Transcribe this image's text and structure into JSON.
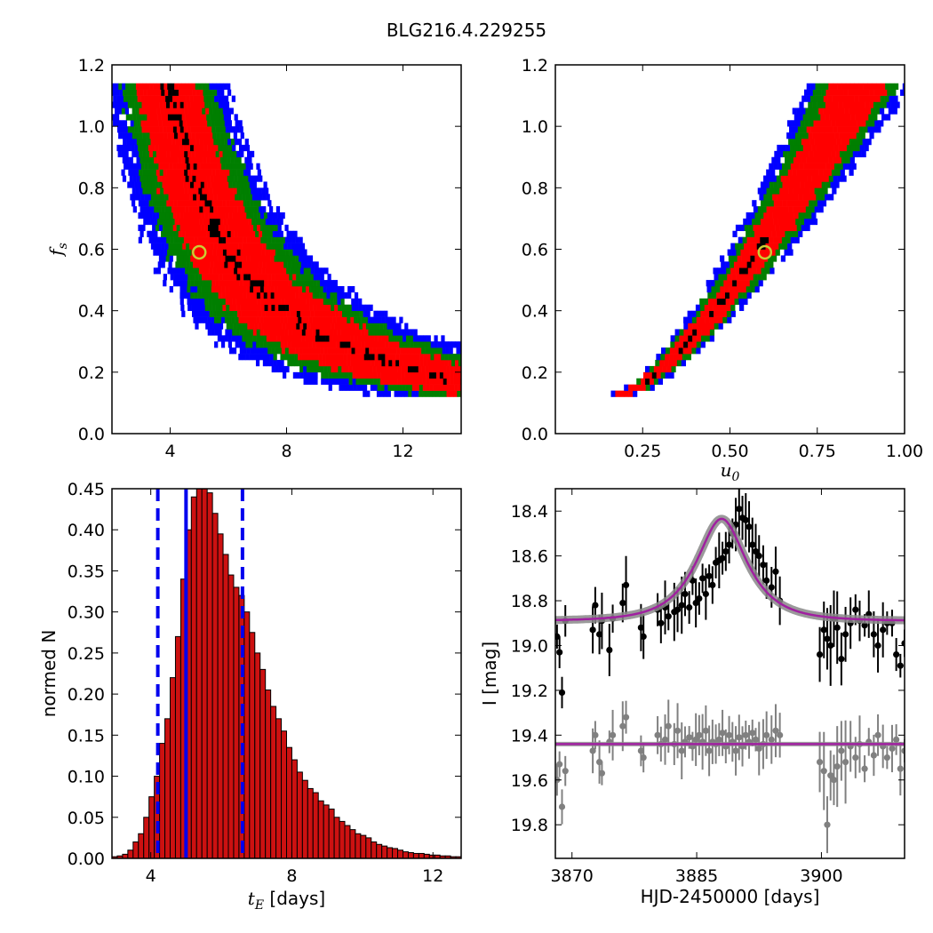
{
  "figure": {
    "title": "BLG216.4.229255"
  },
  "colors": {
    "sigma1": "#ff0000",
    "sigma2": "#007f00",
    "sigma3": "#0000ff",
    "peak": "#000000",
    "best": "#cccc33",
    "model": "#a020a0",
    "hist": "#cc1111",
    "vline": "#0000ee",
    "data1": "#000000",
    "data2": "#808080"
  },
  "chart_data": [
    {
      "type": "heatmap",
      "xlabel": "",
      "ylabel": "f_s",
      "xlim": [
        2,
        14
      ],
      "ylim": [
        0,
        1.2
      ],
      "xticks": [
        "4",
        "8",
        "12"
      ],
      "yticks": [
        "0.0",
        "0.2",
        "0.4",
        "0.6",
        "0.8",
        "1.0",
        "1.2"
      ],
      "best_fit": {
        "x": 5.0,
        "fs": 0.59
      },
      "band": {
        "model": "fs = 1.15*(3.8/tE)^1.5",
        "fs_range": [
          0.12,
          1.14
        ]
      }
    },
    {
      "type": "heatmap",
      "xlabel": "u_0",
      "ylabel": "",
      "xlim": [
        0,
        1.0
      ],
      "ylim": [
        0,
        1.2
      ],
      "xticks": [
        "0.25",
        "0.50",
        "0.75",
        "1.00"
      ],
      "yticks": [
        "0.0",
        "0.2",
        "0.4",
        "0.6",
        "0.8",
        "1.0",
        "1.2"
      ],
      "best_fit": {
        "x": 0.6,
        "fs": 0.59
      },
      "band": {
        "u0_range": [
          0.19,
          0.87
        ],
        "fs_range": [
          0.12,
          1.14
        ]
      }
    },
    {
      "type": "bar",
      "xlabel": "t_E [days]",
      "ylabel": "normed N",
      "xlim": [
        2.9,
        12.8
      ],
      "ylim": [
        0,
        0.45
      ],
      "xticks": [
        "4",
        "8",
        "12"
      ],
      "yticks": [
        "0.00",
        "0.05",
        "0.10",
        "0.15",
        "0.20",
        "0.25",
        "0.30",
        "0.35",
        "0.40",
        "0.45"
      ],
      "bin_start": 2.9,
      "bin_width": 0.15,
      "values": [
        0.002,
        0.003,
        0.005,
        0.01,
        0.02,
        0.03,
        0.05,
        0.075,
        0.1,
        0.14,
        0.17,
        0.22,
        0.27,
        0.34,
        0.4,
        0.44,
        0.455,
        0.46,
        0.445,
        0.42,
        0.395,
        0.37,
        0.345,
        0.33,
        0.32,
        0.3,
        0.275,
        0.25,
        0.23,
        0.205,
        0.185,
        0.17,
        0.155,
        0.135,
        0.12,
        0.105,
        0.095,
        0.085,
        0.08,
        0.07,
        0.065,
        0.06,
        0.05,
        0.045,
        0.04,
        0.035,
        0.03,
        0.028,
        0.025,
        0.02,
        0.017,
        0.015,
        0.013,
        0.012,
        0.01,
        0.008,
        0.007,
        0.006,
        0.006,
        0.005,
        0.004,
        0.004,
        0.003,
        0.003,
        0.002,
        0.002,
        0.002
      ],
      "dashed_lines": [
        4.2,
        6.6
      ],
      "solid_line": 5.0
    },
    {
      "type": "scatter",
      "xlabel": "HJD-2450000 [days]",
      "ylabel": "I [mag]",
      "xlim": [
        3868,
        3910
      ],
      "ylim": [
        19.95,
        18.3
      ],
      "xticks": [
        "3870",
        "3885",
        "3900"
      ],
      "yticks": [
        "18.4",
        "18.6",
        "18.8",
        "19.0",
        "19.2",
        "19.4",
        "19.6",
        "19.8"
      ],
      "model": {
        "t0": 3888,
        "tE": 5.0,
        "u0": 0.6,
        "fs": 0.59,
        "base1": 18.89,
        "base2": 19.44
      },
      "series": [
        {
          "x": [
            3868.2,
            3868.5,
            3868.8,
            3869.2,
            3872.5,
            3872.8,
            3873.3,
            3873.6,
            3874.5,
            3874.9,
            3876.1,
            3876.5,
            3878.3,
            3878.6,
            3880.3,
            3880.7,
            3881.2,
            3881.6,
            3882.3,
            3882.7,
            3883.2,
            3883.6,
            3884.1,
            3884.5,
            3884.9,
            3885.3,
            3885.7,
            3886.1,
            3886.5,
            3886.9,
            3887.3,
            3887.7,
            3888.1,
            3888.5,
            3888.9,
            3889.3,
            3889.7,
            3890.1,
            3890.5,
            3890.9,
            3891.3,
            3891.7,
            3892.1,
            3892.5,
            3893.0,
            3893.4,
            3894.0,
            3894.5,
            3895.0,
            3899.8,
            3900.3,
            3900.7,
            3901.1,
            3901.5,
            3901.9,
            3902.4,
            3902.9,
            3903.5,
            3904.1,
            3904.6,
            3905.2,
            3905.7,
            3906.3,
            3906.8,
            3907.4,
            3907.9,
            3908.5,
            3909.0,
            3909.5,
            3910.0
          ],
          "y": [
            18.96,
            19.03,
            19.21,
            18.89,
            18.93,
            18.82,
            18.95,
            18.89,
            19.02,
            18.88,
            18.81,
            18.73,
            18.92,
            18.96,
            18.84,
            18.9,
            18.83,
            18.87,
            18.85,
            18.84,
            18.82,
            18.77,
            18.83,
            18.71,
            18.81,
            18.79,
            18.7,
            18.77,
            18.69,
            18.73,
            18.63,
            18.62,
            18.61,
            18.58,
            18.55,
            18.5,
            18.46,
            18.39,
            18.43,
            18.44,
            18.47,
            18.55,
            18.58,
            18.6,
            18.64,
            18.71,
            18.74,
            18.67,
            18.8,
            19.04,
            18.93,
            18.97,
            19.0,
            18.88,
            18.92,
            19.06,
            18.95,
            18.9,
            18.84,
            18.89,
            18.91,
            18.86,
            18.95,
            19.0,
            18.93,
            18.9,
            18.9,
            19.04,
            19.09,
            18.99
          ]
        },
        {
          "x": [
            3868.2,
            3868.5,
            3868.8,
            3869.2,
            3872.5,
            3872.8,
            3873.3,
            3873.6,
            3874.5,
            3874.9,
            3876.1,
            3876.5,
            3878.3,
            3878.6,
            3880.3,
            3880.7,
            3881.2,
            3881.6,
            3882.3,
            3882.7,
            3883.2,
            3883.6,
            3884.1,
            3884.5,
            3884.9,
            3885.3,
            3885.7,
            3886.1,
            3886.5,
            3886.9,
            3887.3,
            3887.7,
            3888.1,
            3888.5,
            3888.9,
            3889.3,
            3889.7,
            3890.1,
            3890.5,
            3890.9,
            3891.3,
            3891.7,
            3892.1,
            3892.5,
            3893.0,
            3893.4,
            3894.0,
            3894.5,
            3895.0,
            3899.8,
            3900.3,
            3900.7,
            3901.1,
            3901.5,
            3901.9,
            3902.4,
            3902.9,
            3903.5,
            3904.1,
            3904.6,
            3905.2,
            3905.7,
            3906.3,
            3906.8,
            3907.4,
            3907.9,
            3908.5,
            3909.0,
            3909.5,
            3910.0
          ],
          "y": [
            19.6,
            19.53,
            19.72,
            19.56,
            19.47,
            19.4,
            19.52,
            19.57,
            19.43,
            19.4,
            19.36,
            19.32,
            19.47,
            19.5,
            19.4,
            19.44,
            19.42,
            19.36,
            19.44,
            19.38,
            19.47,
            19.43,
            19.41,
            19.45,
            19.42,
            19.4,
            19.43,
            19.38,
            19.47,
            19.43,
            19.44,
            19.42,
            19.39,
            19.45,
            19.4,
            19.43,
            19.47,
            19.41,
            19.45,
            19.4,
            19.43,
            19.39,
            19.42,
            19.46,
            19.44,
            19.4,
            19.42,
            19.38,
            19.4,
            19.52,
            19.56,
            19.8,
            19.58,
            19.6,
            19.54,
            19.47,
            19.52,
            19.45,
            19.5,
            19.44,
            19.55,
            19.43,
            19.49,
            19.4,
            19.45,
            19.5,
            19.46,
            19.42,
            19.55,
            19.47
          ]
        }
      ]
    }
  ]
}
